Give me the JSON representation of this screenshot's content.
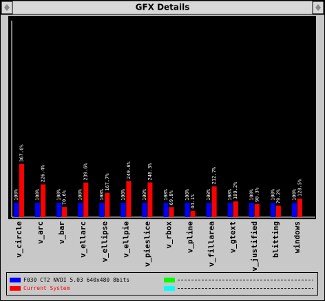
{
  "window": {
    "title": "GFX Details"
  },
  "chart_data": {
    "type": "bar",
    "categories": [
      "v_circle",
      "v_arc",
      "v_bar",
      "v_ellarc",
      "v_ellipse",
      "v_ellpie",
      "v_pieslice",
      "v_rbox",
      "v_pline",
      "v_fillarea",
      "v_gtext",
      "v_justified",
      "blitting",
      "windows"
    ],
    "series": [
      {
        "name": "F030 CT2 NVDI 5.03 640x480 8bits",
        "color": "#0000ff",
        "values": [
          100,
          100,
          100,
          100,
          100,
          100,
          100,
          100,
          100,
          100,
          100,
          100,
          100,
          100
        ],
        "value_labels": [
          "100%",
          "100%",
          "100%",
          "100%",
          "100%",
          "100%",
          "100%",
          "100%",
          "100%",
          "100%",
          "100%",
          "100%",
          "100%",
          "100%"
        ]
      },
      {
        "name": "Current System",
        "color": "#ff0000",
        "values": [
          367.6,
          226.4,
          70.6,
          239.6,
          167.7,
          249.6,
          240.3,
          69.8,
          44.1,
          212.7,
          109.2,
          90.3,
          79.2,
          128.5
        ],
        "value_labels": [
          "367.6%",
          "226.4%",
          "70.6%",
          "239.6%",
          "167.7%",
          "249.6%",
          "240.3%",
          "69.8%",
          "44.1%",
          "212.7%",
          "109.2%",
          "90.3%",
          "79.2%",
          "128.5%"
        ]
      }
    ],
    "ylim": [
      0,
      1360
    ]
  }
}
